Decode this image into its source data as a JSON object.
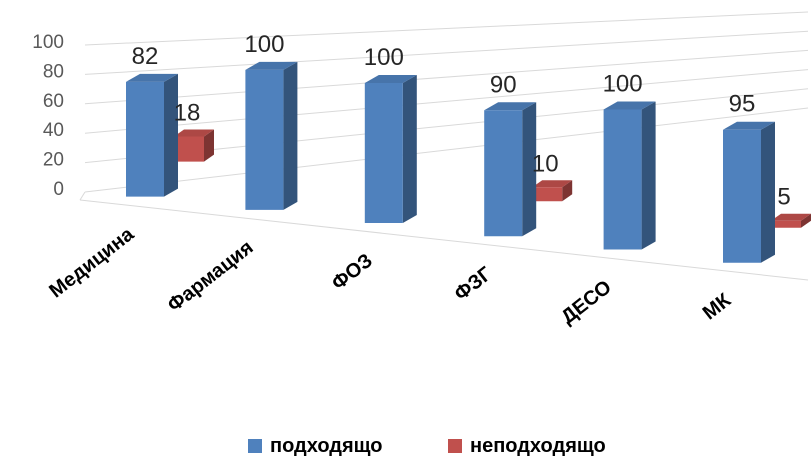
{
  "chart_data": {
    "type": "bar",
    "categories": [
      "Медицина",
      "Фармация",
      "ФОЗ",
      "ФЗГ",
      "ДЕСО",
      "МК"
    ],
    "series": [
      {
        "name": "подходящо",
        "values": [
          82,
          100,
          100,
          90,
          100,
          95
        ],
        "color": "#4F81BD",
        "labels": [
          "82",
          "100",
          "100",
          "90",
          "100",
          "95"
        ]
      },
      {
        "name": "неподходящо",
        "values": [
          18,
          0,
          0,
          10,
          0,
          5
        ],
        "color": "#C0504D",
        "labels": [
          "18",
          "",
          "",
          "10",
          "",
          "5"
        ]
      }
    ],
    "yticks": [
      "0",
      "20",
      "40",
      "60",
      "80",
      "100"
    ],
    "ylim": [
      0,
      100
    ],
    "grid": true,
    "legend_position": "bottom",
    "three_d": true
  }
}
